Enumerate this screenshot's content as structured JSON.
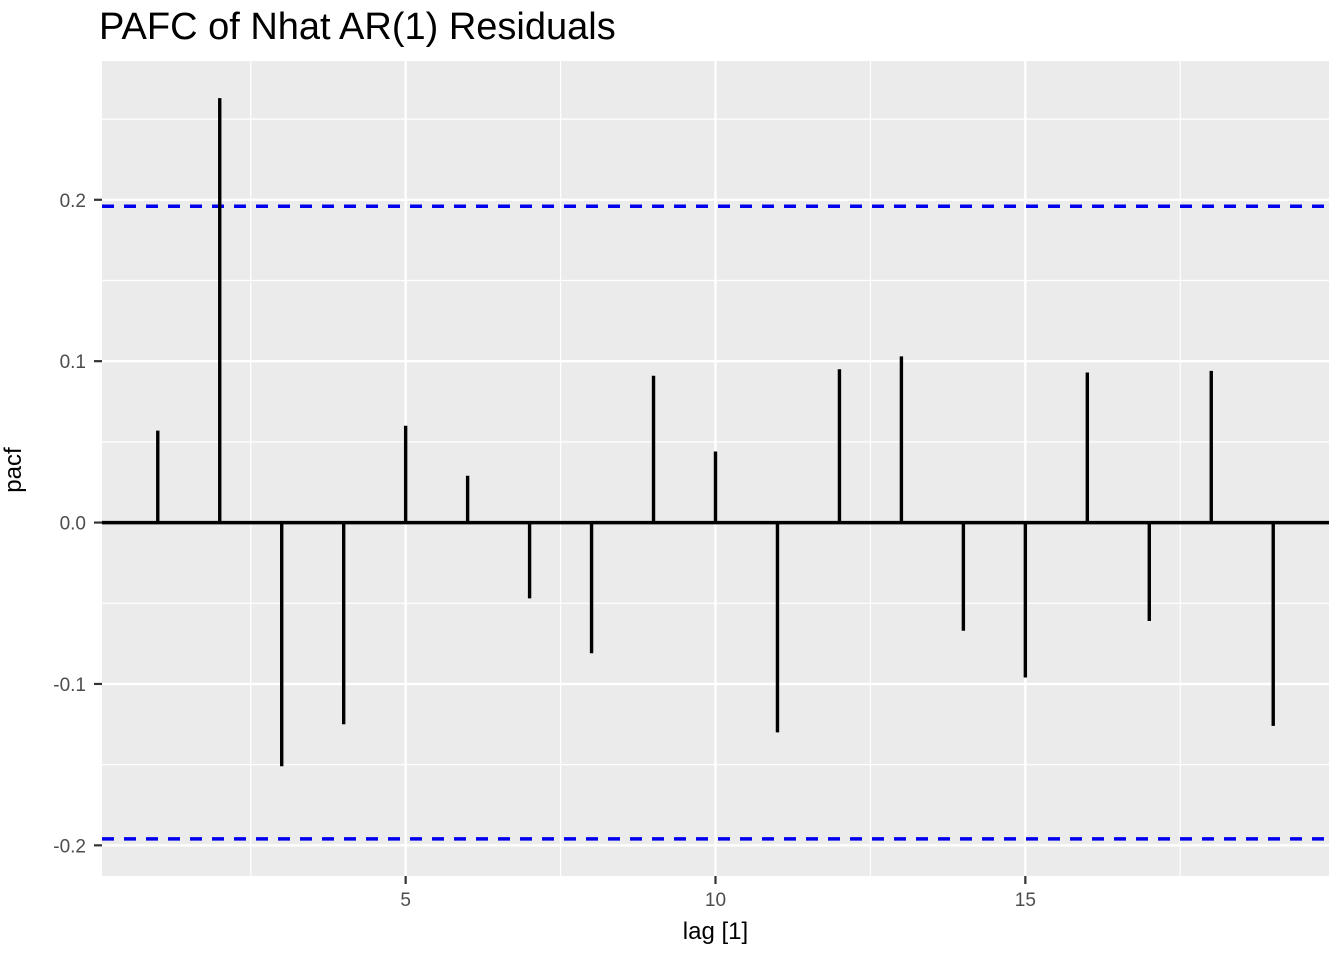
{
  "chart_data": {
    "type": "bar",
    "subtype": "pacf-stem-plot",
    "title": "PAFC of Nhat AR(1) Residuals",
    "xlabel": "lag [1]",
    "ylabel": "pacf",
    "x": [
      1,
      2,
      3,
      4,
      5,
      6,
      7,
      8,
      9,
      10,
      11,
      12,
      13,
      14,
      15,
      16,
      17,
      18,
      19
    ],
    "values": [
      0.057,
      0.263,
      -0.151,
      -0.125,
      0.06,
      0.029,
      -0.047,
      -0.081,
      0.091,
      0.044,
      -0.13,
      0.095,
      0.103,
      -0.067,
      -0.096,
      0.093,
      -0.061,
      0.094,
      -0.126
    ],
    "confidence_lines": [
      0.196,
      -0.196
    ],
    "zero_line": 0.0,
    "xlim": [
      0.1,
      19.9
    ],
    "ylim": [
      -0.219,
      0.286
    ],
    "x_ticks": [
      {
        "value": 5,
        "label": "5"
      },
      {
        "value": 10,
        "label": "10"
      },
      {
        "value": 15,
        "label": "15"
      }
    ],
    "y_ticks": [
      {
        "value": 0.2,
        "label": "0.2"
      },
      {
        "value": 0.1,
        "label": "0.1"
      },
      {
        "value": 0.0,
        "label": "0.0"
      },
      {
        "value": -0.1,
        "label": "-0.1"
      },
      {
        "value": -0.2,
        "label": "-0.2"
      }
    ],
    "x_minor_gridlines": [
      2.5,
      7.5,
      12.5,
      17.5
    ],
    "y_minor_gridlines": [
      0.25,
      0.15,
      0.05,
      -0.05,
      -0.15
    ],
    "grid": true,
    "legend": false,
    "colors": {
      "panel_background": "#EBEBEB",
      "gridline": "#FFFFFF",
      "bar": "#000000",
      "zero_line": "#000000",
      "confidence_line": "#0000EE",
      "tick_mark": "#333333",
      "tick_label": "#4D4D4D",
      "text": "#000000",
      "figure_background": "#FFFFFF"
    }
  }
}
